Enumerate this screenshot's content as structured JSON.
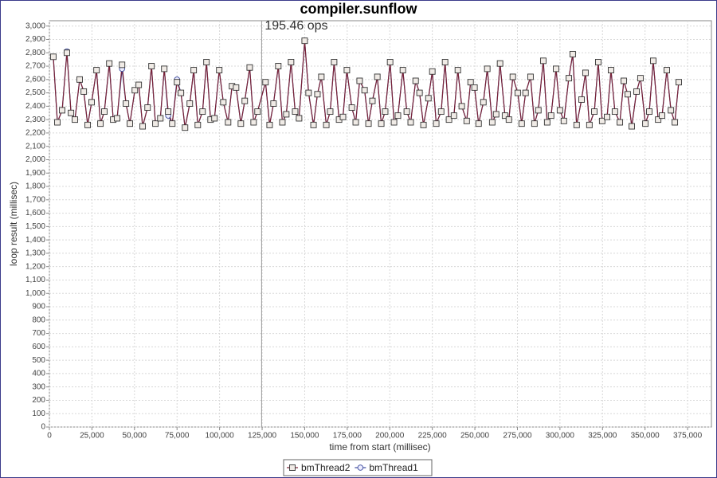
{
  "chart_data": {
    "type": "line",
    "title": "compiler.sunflow",
    "x_label": "time from start (millisec)",
    "y_label": "loop result (millisec)",
    "annotation": {
      "text": "195.46 ops",
      "x": 124700
    },
    "grid": true,
    "legend": "bottom",
    "xlim": [
      0,
      389000
    ],
    "ylim": [
      0,
      3040
    ],
    "xticks": [
      0,
      {
        "value": 25000,
        "label": "25,000"
      },
      {
        "value": 50000,
        "label": "50,000"
      },
      {
        "value": 75000,
        "label": "75,000"
      },
      {
        "value": 100000,
        "label": "100,000"
      },
      {
        "value": 125000,
        "label": "125,000"
      },
      {
        "value": 150000,
        "label": "150,000"
      },
      {
        "value": 175000,
        "label": "175,000"
      },
      {
        "value": 200000,
        "label": "200,000"
      },
      {
        "value": 225000,
        "label": "225,000"
      },
      {
        "value": 250000,
        "label": "250,000"
      },
      {
        "value": 275000,
        "label": "275,000"
      },
      {
        "value": 300000,
        "label": "300,000"
      },
      {
        "value": 325000,
        "label": "325,000"
      },
      {
        "value": 350000,
        "label": "350,000"
      },
      {
        "value": 375000,
        "label": "375,000"
      }
    ],
    "yticks": [
      0,
      100,
      200,
      300,
      400,
      500,
      600,
      700,
      800,
      900,
      {
        "value": 1000,
        "label": "1,000"
      },
      {
        "value": 1100,
        "label": "1,100"
      },
      {
        "value": 1200,
        "label": "1,200"
      },
      {
        "value": 1300,
        "label": "1,300"
      },
      {
        "value": 1400,
        "label": "1,400"
      },
      {
        "value": 1500,
        "label": "1,500"
      },
      {
        "value": 1600,
        "label": "1,600"
      },
      {
        "value": 1700,
        "label": "1,700"
      },
      {
        "value": 1800,
        "label": "1,800"
      },
      {
        "value": 1900,
        "label": "1,900"
      },
      {
        "value": 2000,
        "label": "2,000"
      },
      {
        "value": 2100,
        "label": "2,100"
      },
      {
        "value": 2200,
        "label": "2,200"
      },
      {
        "value": 2300,
        "label": "2,300"
      },
      {
        "value": 2400,
        "label": "2,400"
      },
      {
        "value": 2500,
        "label": "2,500"
      },
      {
        "value": 2600,
        "label": "2,600"
      },
      {
        "value": 2700,
        "label": "2,700"
      },
      {
        "value": 2800,
        "label": "2,800"
      },
      {
        "value": 2900,
        "label": "2,900"
      },
      {
        "value": 3000,
        "label": "3,000"
      }
    ],
    "x": [
      2300,
      4700,
      7500,
      10300,
      12700,
      15000,
      17800,
      20200,
      22500,
      24800,
      27700,
      30000,
      32300,
      35200,
      37500,
      39800,
      42700,
      45000,
      47300,
      50200,
      52500,
      54800,
      57700,
      60000,
      62300,
      65200,
      67500,
      69800,
      72200,
      75000,
      77300,
      79700,
      82500,
      84800,
      87200,
      90000,
      92300,
      94700,
      97000,
      99800,
      102200,
      105000,
      107300,
      109700,
      112500,
      114800,
      117700,
      120000,
      122300,
      127000,
      129400,
      131700,
      134500,
      136900,
      139200,
      142000,
      144400,
      146700,
      150000,
      152300,
      155200,
      157500,
      159800,
      162700,
      165000,
      167300,
      170200,
      172500,
      174800,
      177700,
      180000,
      182300,
      185200,
      187500,
      189800,
      192700,
      195000,
      197300,
      200200,
      202500,
      204800,
      207700,
      210000,
      212300,
      215200,
      217500,
      219800,
      222700,
      225000,
      227300,
      230200,
      232500,
      234800,
      237700,
      240000,
      242300,
      245200,
      247500,
      249800,
      252200,
      255000,
      257300,
      260200,
      262500,
      264800,
      267700,
      270000,
      272300,
      275200,
      277500,
      279800,
      282700,
      285000,
      287300,
      290200,
      292500,
      294800,
      297700,
      300000,
      302300,
      305200,
      307500,
      309800,
      312700,
      315000,
      317300,
      320200,
      322500,
      324800,
      327700,
      330000,
      332300,
      335200,
      337500,
      339800,
      342200,
      345000,
      347300,
      350200,
      352500,
      354800,
      357700,
      360000,
      362800,
      365200,
      367500,
      369800
    ],
    "series": [
      {
        "name": "bmThread2",
        "color": "#7a2236",
        "marker": "square",
        "values": [
          2770,
          2280,
          2370,
          2800,
          2350,
          2300,
          2600,
          2510,
          2260,
          2430,
          2670,
          2270,
          2360,
          2720,
          2300,
          2310,
          2710,
          2420,
          2270,
          2520,
          2560,
          2250,
          2390,
          2700,
          2270,
          2310,
          2680,
          2360,
          2270,
          2580,
          2500,
          2240,
          2420,
          2670,
          2260,
          2360,
          2730,
          2300,
          2310,
          2670,
          2430,
          2280,
          2550,
          2540,
          2270,
          2440,
          2690,
          2280,
          2360,
          2580,
          2260,
          2420,
          2700,
          2280,
          2340,
          2730,
          2360,
          2310,
          2890,
          2500,
          2260,
          2490,
          2620,
          2260,
          2360,
          2730,
          2300,
          2320,
          2670,
          2390,
          2280,
          2590,
          2520,
          2270,
          2440,
          2620,
          2270,
          2360,
          2730,
          2280,
          2330,
          2670,
          2360,
          2280,
          2590,
          2500,
          2260,
          2460,
          2660,
          2270,
          2360,
          2730,
          2300,
          2330,
          2670,
          2400,
          2290,
          2580,
          2540,
          2270,
          2430,
          2680,
          2280,
          2340,
          2720,
          2330,
          2300,
          2620,
          2500,
          2270,
          2500,
          2620,
          2270,
          2370,
          2740,
          2280,
          2330,
          2680,
          2370,
          2290,
          2610,
          2790,
          2260,
          2450,
          2650,
          2260,
          2360,
          2730,
          2290,
          2320,
          2670,
          2360,
          2280,
          2590,
          2490,
          2250,
          2510,
          2610,
          2270,
          2360,
          2740,
          2300,
          2330,
          2670,
          2370,
          2280,
          2580
        ]
      },
      {
        "name": "bmThread1",
        "color": "#3b4a9c",
        "marker": "circle",
        "values": [
          2770,
          2280,
          2370,
          2810,
          2350,
          2300,
          2600,
          2510,
          2260,
          2430,
          2670,
          2270,
          2360,
          2720,
          2300,
          2310,
          2680,
          2420,
          2270,
          2520,
          2560,
          2250,
          2390,
          2700,
          2270,
          2310,
          2680,
          2330,
          2270,
          2600,
          2500,
          2240,
          2420,
          2670,
          2260,
          2360,
          2730,
          2300,
          2310,
          2670,
          2430,
          2280,
          2550,
          2540,
          2270,
          2440,
          2690,
          2280,
          2360,
          2580,
          2260,
          2420,
          2700,
          2280,
          2340,
          2730,
          2360,
          2310,
          2890,
          2500,
          2260,
          2490,
          2620,
          2260,
          2360,
          2730,
          2300,
          2320,
          2670,
          2390,
          2280,
          2590,
          2520,
          2270,
          2440,
          2620,
          2270,
          2360,
          2730,
          2280,
          2330,
          2670,
          2360,
          2280,
          2590,
          2500,
          2260,
          2460,
          2660,
          2270,
          2360,
          2730,
          2300,
          2330,
          2670,
          2400,
          2290,
          2580,
          2540,
          2270,
          2430,
          2680,
          2280,
          2340,
          2720,
          2330,
          2300,
          2620,
          2500,
          2270,
          2500,
          2620,
          2270,
          2370,
          2740,
          2280,
          2330,
          2680,
          2370,
          2290,
          2610,
          2790,
          2260,
          2450,
          2650,
          2260,
          2360,
          2730,
          2290,
          2320,
          2670,
          2360,
          2280,
          2590,
          2490,
          2250,
          2510,
          2610,
          2270,
          2360,
          2740,
          2300,
          2330,
          2670,
          2370,
          2280,
          2580
        ]
      }
    ]
  }
}
